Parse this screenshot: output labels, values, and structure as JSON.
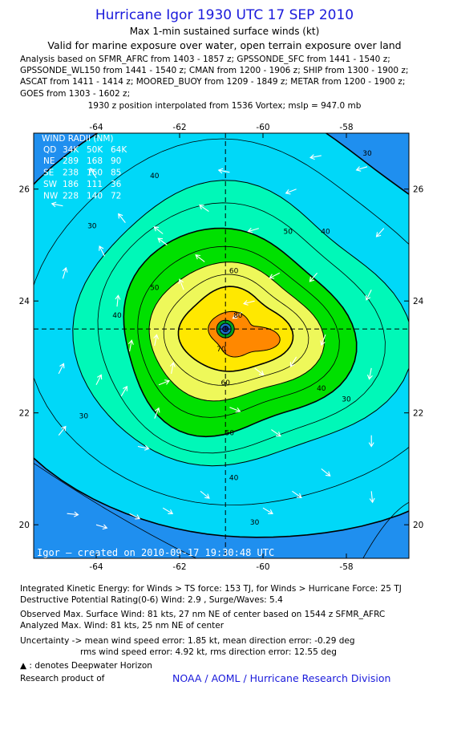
{
  "header": {
    "title": "Hurricane Igor 1930 UTC 17 SEP 2010",
    "subtitle": "Max 1-min sustained surface winds (kt)",
    "validity": "Valid for marine exposure over water, open terrain exposure over land",
    "analysis_lines": [
      "Analysis based on SFMR_AFRC from 1403 - 1857 z; GPSSONDE_SFC from 1441 - 1540 z;",
      "GPSSONDE_WL150 from 1441 - 1540 z; CMAN from 1200 - 1906 z; SHIP from 1300 - 1900 z;",
      "ASCAT from 1411 - 1414 z; MOORED_BUOY from 1209 - 1849 z; METAR from 1200 - 1900 z;",
      "GOES from 1303 - 1602 z;"
    ],
    "position_line": "1930 z position interpolated from 1536 Vortex; mslp = 947.0 mb"
  },
  "chart_data": {
    "type": "contour",
    "xlim": [
      -65.5,
      -56.5
    ],
    "ylim": [
      19.4,
      27.0
    ],
    "xticks": [
      -64,
      -62,
      -60,
      -58
    ],
    "yticks": [
      20,
      22,
      24,
      26
    ],
    "tick_labels_x": [
      "-64",
      "-62",
      "-60",
      "-58"
    ],
    "tick_labels_y": [
      "20",
      "22",
      "24",
      "26"
    ],
    "center": {
      "lon": -60.9,
      "lat": 23.5
    },
    "contour_levels_kt": [
      30,
      40,
      50,
      60,
      70,
      80
    ],
    "contour_labels": [
      {
        "text": "30",
        "lon": -64.1,
        "lat": 25.3
      },
      {
        "text": "30",
        "lon": -64.3,
        "lat": 21.9
      },
      {
        "text": "30",
        "lon": -60.2,
        "lat": 20.0
      },
      {
        "text": "30",
        "lon": -58.0,
        "lat": 22.2
      },
      {
        "text": "30",
        "lon": -57.5,
        "lat": 26.6
      },
      {
        "text": "40",
        "lon": -62.6,
        "lat": 26.2
      },
      {
        "text": "40",
        "lon": -63.5,
        "lat": 23.7
      },
      {
        "text": "40",
        "lon": -60.7,
        "lat": 20.8
      },
      {
        "text": "40",
        "lon": -58.6,
        "lat": 22.4
      },
      {
        "text": "40",
        "lon": -58.5,
        "lat": 25.2
      },
      {
        "text": "50",
        "lon": -62.6,
        "lat": 24.2
      },
      {
        "text": "50",
        "lon": -60.8,
        "lat": 21.6
      },
      {
        "text": "50",
        "lon": -59.4,
        "lat": 25.2
      },
      {
        "text": "60",
        "lon": -60.7,
        "lat": 24.5
      },
      {
        "text": "60",
        "lon": -60.9,
        "lat": 22.5
      },
      {
        "text": "70",
        "lon": -61.0,
        "lat": 23.1
      },
      {
        "text": "80",
        "lon": -60.6,
        "lat": 23.7
      }
    ],
    "wind_radii": {
      "title": "WIND RADII (NM)",
      "header": [
        "QD",
        "34K",
        "50K",
        "64K"
      ],
      "rows": [
        [
          "NE",
          "289",
          "168",
          "90"
        ],
        [
          "SE",
          "238",
          "160",
          "85"
        ],
        [
          "SW",
          "186",
          "111",
          "36"
        ],
        [
          "NW",
          "228",
          "140",
          "72"
        ]
      ]
    },
    "credit": "Igor – created on 2010-09-17 19:30:48 UTC",
    "colors": {
      "lt30": "#1f8fef",
      "30-40": "#00d8f8",
      "40-50": "#00f8b8",
      "50-60": "#00e000",
      "60-70": "#eef85a",
      "70-80": "#ffe800",
      "80+": "#ff8800"
    }
  },
  "footer": {
    "ike": "Integrated Kinetic Energy:  for Winds > TS force: 153 TJ,  for Winds > Hurricane Force: 25 TJ",
    "dpr": "Destructive Potential Rating(0-6)   Wind: 2.9 , Surge/Waves: 5.4",
    "observed": "Observed Max. Surface Wind: 81 kts, 27 nm NE of center based on 1544 z SFMR_AFRC",
    "analyzed": "Analyzed Max. Wind: 81 kts, 25 nm NE of center",
    "uncertainty1": "Uncertainty -> mean wind speed error: 1.85 kt,   mean direction error:  -0.29 deg",
    "uncertainty2": "rms wind speed error: 4.92 kt,   rms direction error: 12.55 deg",
    "deepwater": ": denotes Deepwater Horizon",
    "research": "Research product of",
    "org": "NOAA / AOML / Hurricane Research Division"
  }
}
